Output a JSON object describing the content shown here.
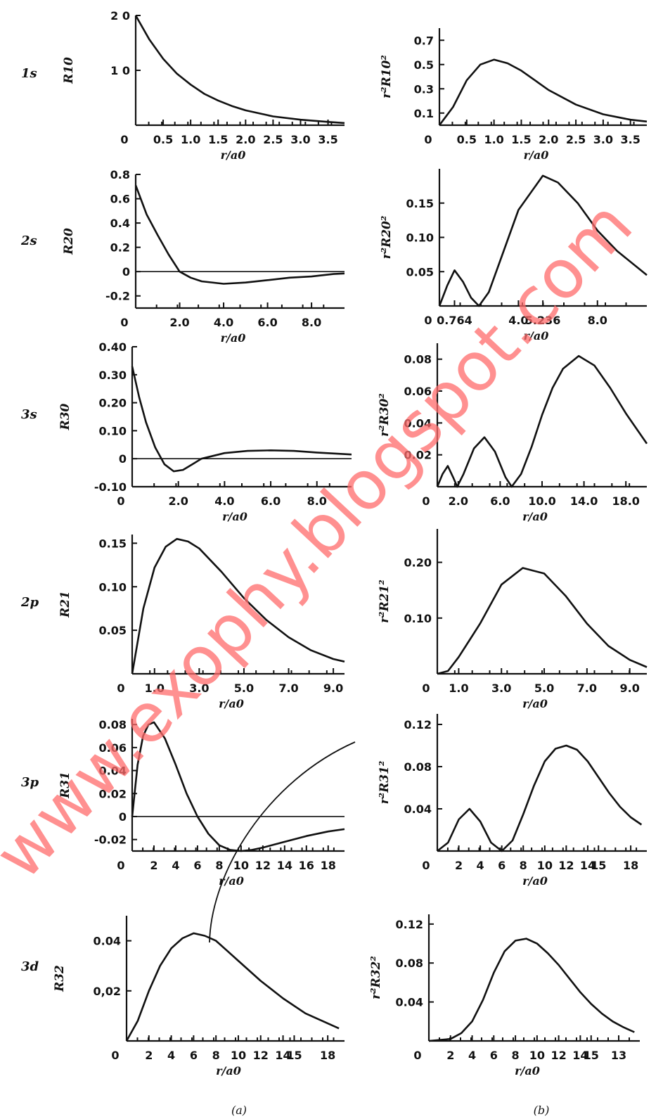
{
  "row_labels": [
    "1s",
    "2s",
    "3s",
    "2p",
    "3p",
    "3d"
  ],
  "watermark": "www.exophy.blogspot.com",
  "colors": {
    "curve": "#111111",
    "watermark": "#ff6b6b",
    "background": "#ffffff"
  },
  "panel_labels": [
    "(a)",
    "(b)"
  ],
  "chart_data": [
    {
      "id": "1s-a",
      "type": "line",
      "ylabel": "R10",
      "xlabel": "r/a0",
      "xlim": [
        0,
        3.8
      ],
      "ylim": [
        0,
        2.0
      ],
      "xticks": [
        "0",
        "0.5",
        "1.0",
        "1.5",
        "2.0",
        "2.5",
        "3.0",
        "3.5"
      ],
      "yticks": [
        "2 0",
        "1 0"
      ],
      "series": [
        {
          "x": [
            0,
            0.25,
            0.5,
            0.75,
            1.0,
            1.25,
            1.5,
            1.75,
            2.0,
            2.5,
            3.0,
            3.5,
            3.8
          ],
          "y": [
            2.0,
            1.56,
            1.21,
            0.94,
            0.74,
            0.57,
            0.45,
            0.35,
            0.27,
            0.16,
            0.1,
            0.06,
            0.04
          ]
        }
      ]
    },
    {
      "id": "1s-b",
      "type": "line",
      "ylabel": "r²R10²",
      "xlabel": "r/a0",
      "xlim": [
        0,
        3.8
      ],
      "ylim": [
        0,
        0.8
      ],
      "xticks": [
        "0",
        "0.5",
        "1.0",
        "1.5",
        "2.0",
        "2.5",
        "3.0",
        "3.5"
      ],
      "yticks": [
        "0.7",
        "0.5",
        "0.3",
        "0.1"
      ],
      "series": [
        {
          "x": [
            0,
            0.25,
            0.5,
            0.75,
            1.0,
            1.25,
            1.5,
            1.75,
            2.0,
            2.5,
            3.0,
            3.5,
            3.8
          ],
          "y": [
            0,
            0.15,
            0.37,
            0.5,
            0.54,
            0.51,
            0.45,
            0.37,
            0.29,
            0.17,
            0.09,
            0.045,
            0.03
          ]
        }
      ]
    },
    {
      "id": "2s-a",
      "type": "line",
      "ylabel": "R20",
      "xlabel": "r/a0",
      "xlim": [
        0,
        9.5
      ],
      "ylim": [
        -0.3,
        0.8
      ],
      "xticks": [
        "0",
        "2.0",
        "4.0",
        "6.0",
        "8.0"
      ],
      "yticks": [
        "0.8",
        "0.6",
        "0.4",
        "0.2",
        "0",
        "-0.2"
      ],
      "series": [
        {
          "x": [
            0,
            0.5,
            1.0,
            1.5,
            2.0,
            2.5,
            3.0,
            4.0,
            5.0,
            6.0,
            7.0,
            8.0,
            9.0,
            9.5
          ],
          "y": [
            0.71,
            0.47,
            0.3,
            0.14,
            0,
            -0.05,
            -0.08,
            -0.1,
            -0.09,
            -0.07,
            -0.05,
            -0.04,
            -0.02,
            -0.015
          ]
        }
      ]
    },
    {
      "id": "2s-b",
      "type": "line",
      "ylabel": "r²R20²",
      "xlabel": "r/a0",
      "xlim": [
        0,
        10.5
      ],
      "ylim": [
        0,
        0.2
      ],
      "xticks": [
        "0",
        "0.764",
        "4.0",
        "5.236",
        "8.0"
      ],
      "yticks": [
        "0.15",
        "0.10",
        "0.05"
      ],
      "series": [
        {
          "x": [
            0,
            0.4,
            0.764,
            1.2,
            1.6,
            2.0,
            2.5,
            3.0,
            4.0,
            5.236,
            6.0,
            7.0,
            8.0,
            9.0,
            10.5
          ],
          "y": [
            0,
            0.03,
            0.052,
            0.035,
            0.012,
            0,
            0.02,
            0.06,
            0.14,
            0.19,
            0.18,
            0.15,
            0.11,
            0.08,
            0.045
          ]
        }
      ]
    },
    {
      "id": "3s-a",
      "type": "line",
      "ylabel": "R30",
      "xlabel": "r/a0",
      "xlim": [
        0,
        9.5
      ],
      "ylim": [
        -0.1,
        0.4
      ],
      "xticks": [
        "0",
        "2.0",
        "4.0",
        "6.0",
        "8.0"
      ],
      "yticks": [
        "0.40",
        "0.30",
        "0.20",
        "0.10",
        "0",
        "-0.10"
      ],
      "series": [
        {
          "x": [
            0,
            0.3,
            0.6,
            1.0,
            1.4,
            1.8,
            2.2,
            2.6,
            3.0,
            4.0,
            5.0,
            6.0,
            7.0,
            8.0,
            9.5
          ],
          "y": [
            0.33,
            0.22,
            0.13,
            0.04,
            -0.02,
            -0.045,
            -0.04,
            -0.02,
            0,
            0.02,
            0.028,
            0.03,
            0.028,
            0.022,
            0.015
          ]
        }
      ]
    },
    {
      "id": "3s-b",
      "type": "line",
      "ylabel": "r²R30²",
      "xlabel": "r/a0",
      "xlim": [
        0,
        20
      ],
      "ylim": [
        0,
        0.09
      ],
      "xticks": [
        "0",
        "2.0",
        "6.0",
        "10.0",
        "14.0",
        "18.0"
      ],
      "yticks": [
        "0.08",
        "0.06",
        "0.04",
        "0.02"
      ],
      "series": [
        {
          "x": [
            0,
            0.5,
            1.0,
            1.5,
            1.9,
            2.5,
            3.5,
            4.5,
            5.5,
            6.5,
            7.1,
            8.0,
            9.0,
            10.0,
            11.0,
            12.0,
            13.5,
            15.0,
            16.5,
            18.0,
            20.0
          ],
          "y": [
            0,
            0.008,
            0.013,
            0.006,
            0,
            0.008,
            0.024,
            0.031,
            0.022,
            0.006,
            0,
            0.008,
            0.025,
            0.045,
            0.062,
            0.074,
            0.082,
            0.076,
            0.062,
            0.046,
            0.027
          ]
        }
      ]
    },
    {
      "id": "2p-a",
      "type": "line",
      "ylabel": "R21",
      "xlabel": "r/a0",
      "xlim": [
        0,
        9.5
      ],
      "ylim": [
        0,
        0.16
      ],
      "xticks": [
        "0",
        "1.0",
        "3.0",
        "5.0",
        "7.0",
        "9.0"
      ],
      "yticks": [
        "0.15",
        "0.10",
        "0.05"
      ],
      "series": [
        {
          "x": [
            0,
            0.5,
            1.0,
            1.5,
            2.0,
            2.5,
            3.0,
            4.0,
            5.0,
            6.0,
            7.0,
            8.0,
            9.0,
            9.5
          ],
          "y": [
            0,
            0.075,
            0.122,
            0.146,
            0.155,
            0.152,
            0.144,
            0.117,
            0.087,
            0.062,
            0.042,
            0.027,
            0.017,
            0.014
          ]
        }
      ]
    },
    {
      "id": "2p-b",
      "type": "line",
      "ylabel": "r²R21²",
      "xlabel": "r/a0",
      "xlim": [
        0,
        9.8
      ],
      "ylim": [
        0,
        0.26
      ],
      "xticks": [
        "0",
        "1.0",
        "3.0",
        "5.0",
        "7.0",
        "9.0"
      ],
      "yticks": [
        "0.20",
        "0.10"
      ],
      "series": [
        {
          "x": [
            0,
            0.5,
            1.0,
            1.5,
            2.0,
            3.0,
            4.0,
            5.0,
            6.0,
            7.0,
            8.0,
            9.0,
            9.8
          ],
          "y": [
            0,
            0.005,
            0.03,
            0.06,
            0.09,
            0.16,
            0.19,
            0.18,
            0.14,
            0.09,
            0.05,
            0.025,
            0.012
          ]
        }
      ]
    },
    {
      "id": "3p-a",
      "type": "line",
      "ylabel": "R31",
      "xlabel": "r/a0",
      "xlim": [
        0,
        19.5
      ],
      "ylim": [
        -0.03,
        0.085
      ],
      "xticks": [
        "0",
        "2",
        "4",
        "6",
        "8",
        "10",
        "12",
        "14",
        "16",
        "18"
      ],
      "yticks": [
        "0.08",
        "0.06",
        "0.04",
        "0.02",
        "0",
        "-0.02"
      ],
      "series": [
        {
          "x": [
            0,
            0.5,
            1.0,
            1.5,
            2.0,
            3.0,
            4.0,
            5.0,
            6.0,
            7.0,
            8.0,
            9.0,
            10.0,
            11.0,
            12.0,
            14.0,
            16.0,
            18.0,
            19.5
          ],
          "y": [
            0,
            0.045,
            0.07,
            0.08,
            0.082,
            0.068,
            0.045,
            0.02,
            0.0,
            -0.015,
            -0.025,
            -0.029,
            -0.03,
            -0.029,
            -0.027,
            -0.022,
            -0.017,
            -0.013,
            -0.011
          ]
        }
      ]
    },
    {
      "id": "3p-b",
      "type": "line",
      "ylabel": "r²R31²",
      "xlabel": "r/a0",
      "xlim": [
        0,
        19.5
      ],
      "ylim": [
        0,
        0.13
      ],
      "xticks": [
        "0",
        "2",
        "4",
        "6",
        "8",
        "10",
        "12",
        "14",
        "15",
        "18"
      ],
      "yticks": [
        "0.12",
        "0.08",
        "0.04"
      ],
      "series": [
        {
          "x": [
            0,
            1.0,
            2.0,
            3.0,
            4.0,
            5.0,
            6.0,
            7.0,
            8.0,
            9.0,
            10.0,
            11.0,
            12.0,
            13.0,
            14.0,
            15.0,
            16.0,
            17.0,
            18.0,
            19.0
          ],
          "y": [
            0,
            0.008,
            0.03,
            0.04,
            0.028,
            0.008,
            0,
            0.01,
            0.035,
            0.062,
            0.085,
            0.097,
            0.1,
            0.096,
            0.085,
            0.07,
            0.055,
            0.042,
            0.032,
            0.025
          ]
        }
      ]
    },
    {
      "id": "3d-a",
      "type": "line",
      "ylabel": "R32",
      "xlabel": "r/a0",
      "xlim": [
        0,
        19.5
      ],
      "ylim": [
        0,
        0.05
      ],
      "xticks": [
        "0",
        "2",
        "4",
        "6",
        "8",
        "10",
        "12",
        "14",
        "15",
        "18"
      ],
      "yticks": [
        "0.04",
        "0,02"
      ],
      "series": [
        {
          "x": [
            0,
            1.0,
            2.0,
            3.0,
            4.0,
            5.0,
            6.0,
            7.0,
            8.0,
            9.0,
            10.0,
            12.0,
            14.0,
            16.0,
            18.0,
            19.0
          ],
          "y": [
            0,
            0.008,
            0.02,
            0.03,
            0.037,
            0.041,
            0.043,
            0.042,
            0.04,
            0.036,
            0.032,
            0.024,
            0.017,
            0.011,
            0.007,
            0.005
          ]
        }
      ]
    },
    {
      "id": "3d-b",
      "type": "line",
      "ylabel": "r²R32²",
      "xlabel": "r/a0",
      "xlim": [
        0,
        19.5
      ],
      "ylim": [
        0,
        0.13
      ],
      "xticks": [
        "0",
        "2",
        "4",
        "6",
        "8",
        "10",
        "12",
        "14",
        "15",
        "13"
      ],
      "yticks": [
        "0.12",
        "0.08",
        "0.04"
      ],
      "series": [
        {
          "x": [
            0,
            2.0,
            3.0,
            4.0,
            5.0,
            6.0,
            7.0,
            8.0,
            9.0,
            10.0,
            11.0,
            12.0,
            13.0,
            14.0,
            15.0,
            16.0,
            17.0,
            18.0,
            19.0
          ],
          "y": [
            0,
            0.002,
            0.008,
            0.02,
            0.042,
            0.07,
            0.092,
            0.103,
            0.105,
            0.1,
            0.09,
            0.078,
            0.064,
            0.05,
            0.038,
            0.028,
            0.02,
            0.014,
            0.009
          ]
        }
      ]
    }
  ]
}
